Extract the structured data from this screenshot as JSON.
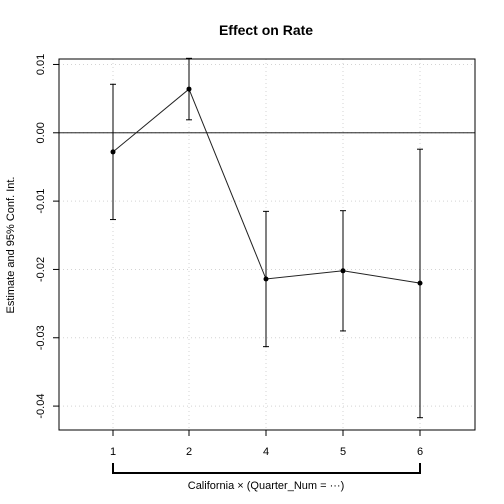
{
  "chart_data": {
    "type": "line",
    "title": "Effect on Rate",
    "ylabel": "Estimate and 95% Conf. Int.",
    "xlabel": "California × (Quarter_Num = ···)",
    "categories": [
      "1",
      "2",
      "4",
      "5",
      "6"
    ],
    "ylim": [
      -0.0435,
      0.0108
    ],
    "yticks": [
      0.01,
      0.0,
      -0.01,
      -0.02,
      -0.03,
      -0.04
    ],
    "ytick_labels": [
      "0.01",
      "0.00",
      "-0.01",
      "-0.02",
      "-0.03",
      "-0.04"
    ],
    "grid": true,
    "reference_line": 0,
    "series": [
      {
        "estimate": [
          -0.0028,
          0.0064,
          -0.0214,
          -0.0202,
          -0.022
        ],
        "ci_low": [
          -0.0127,
          0.0019,
          -0.0313,
          -0.029,
          -0.0417
        ],
        "ci_high": [
          0.0071,
          0.0109,
          -0.0115,
          -0.0114,
          -0.0024
        ]
      }
    ]
  }
}
